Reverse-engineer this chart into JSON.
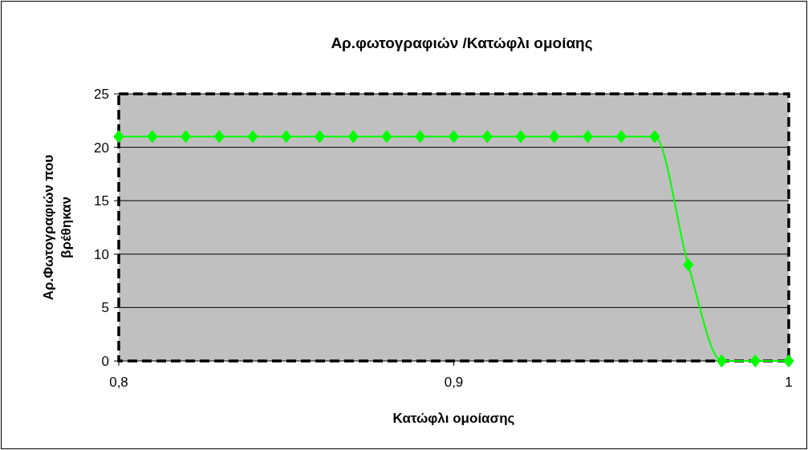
{
  "chart_data": {
    "type": "line",
    "title": "Αρ.φωτογραφιών /Κατώφλι ομοίαης",
    "xlabel": "Κατώφλι ομοίασης",
    "ylabel": "Αρ.Φωτογραφιών που βρέθηκαν",
    "x": [
      0.8,
      0.81,
      0.82,
      0.83,
      0.84,
      0.85,
      0.86,
      0.87,
      0.88,
      0.89,
      0.9,
      0.91,
      0.92,
      0.93,
      0.94,
      0.95,
      0.96,
      0.97,
      0.98,
      0.99,
      1
    ],
    "series": [
      {
        "color": "#00ff00",
        "values": [
          21,
          21,
          21,
          21,
          21,
          21,
          21,
          21,
          21,
          21,
          21,
          21,
          21,
          21,
          21,
          21,
          21,
          9,
          0,
          0,
          0
        ]
      }
    ],
    "xlim": [
      0.8,
      1
    ],
    "xticks": [
      {
        "value": 0.8,
        "label": "0,8"
      },
      {
        "value": 0.9,
        "label": "0,9"
      },
      {
        "value": 1,
        "label": "1"
      }
    ],
    "ylim": [
      0,
      25
    ],
    "yticks": [
      0,
      5,
      10,
      15,
      20,
      25
    ],
    "grid": "y",
    "marker": "diamond",
    "line_style": "solid"
  }
}
